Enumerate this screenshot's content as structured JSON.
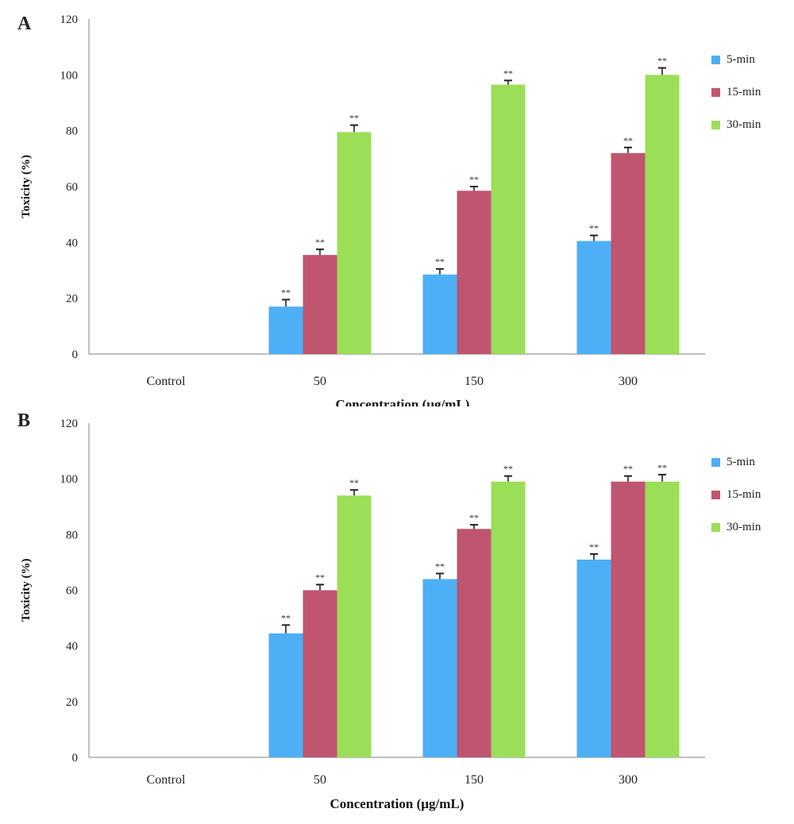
{
  "chart_data": [
    {
      "panel": "A",
      "type": "bar",
      "xlabel": "Concentration (µg/mL)",
      "ylabel": "Toxicity (%)",
      "ylim": [
        0,
        120
      ],
      "yticks": [
        "0",
        "20",
        "40",
        "60",
        "80",
        "100",
        "120"
      ],
      "categories": [
        "Control",
        "50",
        "150",
        "300"
      ],
      "series": [
        {
          "name": "5-min",
          "color": "#4daff5",
          "values": [
            0,
            17,
            28.5,
            40.5
          ],
          "errors": [
            0,
            2.5,
            2,
            2
          ]
        },
        {
          "name": "15-min",
          "color": "#c0556f",
          "values": [
            0,
            35.5,
            58.5,
            72
          ],
          "errors": [
            0,
            2,
            1.5,
            2
          ]
        },
        {
          "name": "30-min",
          "color": "#9bde58",
          "values": [
            0,
            79.5,
            96.5,
            100
          ],
          "errors": [
            0,
            2.5,
            1.5,
            2.5
          ]
        }
      ],
      "annotations": [
        "",
        "**",
        "**",
        "**"
      ],
      "legend_position": "right",
      "grid": false
    },
    {
      "panel": "B",
      "type": "bar",
      "xlabel": "Concentration (µg/mL)",
      "ylabel": "Toxicity (%)",
      "ylim": [
        0,
        120
      ],
      "yticks": [
        "0",
        "20",
        "40",
        "60",
        "80",
        "100",
        "120"
      ],
      "categories": [
        "Control",
        "50",
        "150",
        "300"
      ],
      "series": [
        {
          "name": "5-min",
          "color": "#4daff5",
          "values": [
            0,
            44.5,
            64,
            71
          ],
          "errors": [
            0,
            3,
            2,
            2
          ]
        },
        {
          "name": "15-min",
          "color": "#c0556f",
          "values": [
            0,
            60,
            82,
            99
          ],
          "errors": [
            0,
            2,
            1.5,
            2
          ]
        },
        {
          "name": "30-min",
          "color": "#9bde58",
          "values": [
            0,
            94,
            99,
            99
          ],
          "errors": [
            0,
            2,
            2,
            2.5
          ]
        }
      ],
      "annotations": [
        "",
        "**",
        "**",
        "**"
      ],
      "legend_position": "right",
      "grid": false
    }
  ],
  "panels": [
    "A",
    "B"
  ]
}
